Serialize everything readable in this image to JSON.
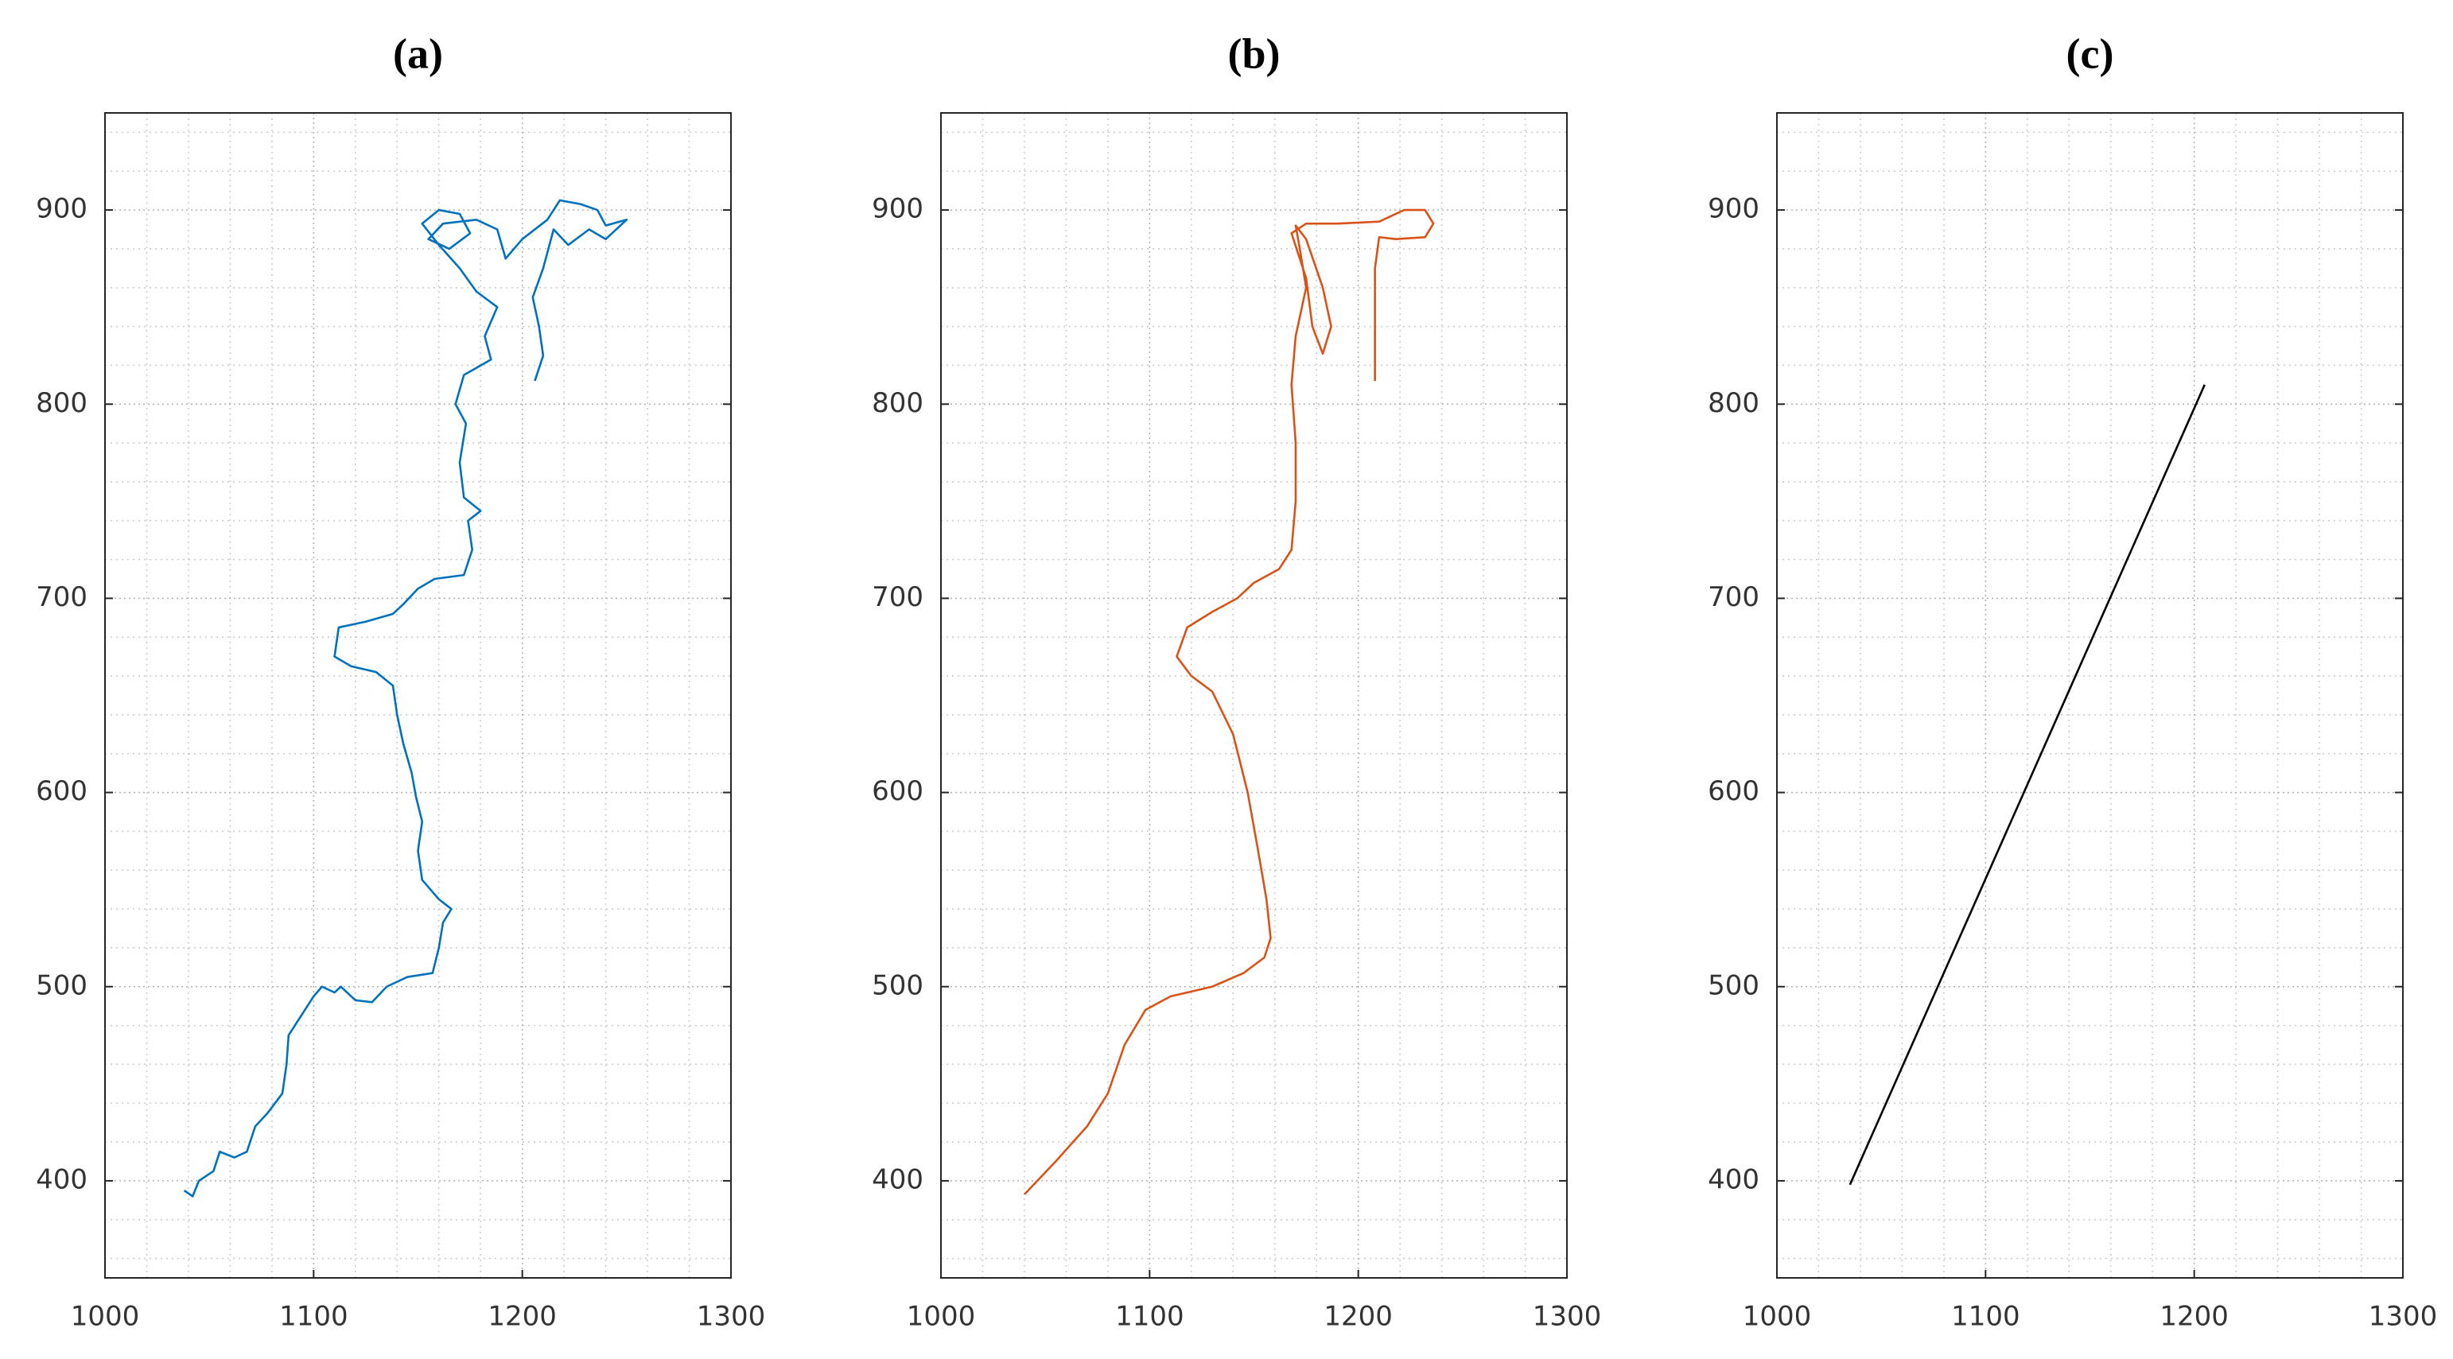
{
  "chart_data": [
    {
      "type": "line",
      "title": "(a)",
      "color": "#0072BD",
      "grid": true,
      "minor_grid": true,
      "xlim": [
        1000,
        1300
      ],
      "ylim": [
        350,
        950
      ],
      "xticks": [
        1000,
        1100,
        1200,
        1300
      ],
      "yticks": [
        400,
        500,
        600,
        700,
        800,
        900
      ],
      "x": [
        1038,
        1042,
        1045,
        1052,
        1055,
        1062,
        1068,
        1072,
        1078,
        1085,
        1087,
        1088,
        1094,
        1100,
        1104,
        1110,
        1113,
        1120,
        1128,
        1135,
        1145,
        1157,
        1160,
        1162,
        1166,
        1160,
        1152,
        1150,
        1152,
        1149,
        1147,
        1143,
        1140,
        1138,
        1130,
        1118,
        1110,
        1112,
        1125,
        1138,
        1143,
        1150,
        1158,
        1172,
        1176,
        1174,
        1180,
        1172,
        1170,
        1173,
        1168,
        1172,
        1185,
        1182,
        1188,
        1178,
        1170,
        1160,
        1152,
        1160,
        1170,
        1175,
        1165,
        1155,
        1162,
        1178,
        1188,
        1192,
        1200,
        1212,
        1218,
        1228,
        1236,
        1240,
        1250,
        1240,
        1232,
        1222,
        1215,
        1210,
        1205,
        1208,
        1210,
        1206
      ],
      "values": [
        395,
        392,
        400,
        405,
        415,
        412,
        415,
        428,
        435,
        445,
        460,
        475,
        485,
        495,
        500,
        497,
        500,
        493,
        492,
        500,
        505,
        507,
        520,
        533,
        540,
        545,
        555,
        570,
        585,
        598,
        610,
        625,
        640,
        655,
        662,
        665,
        670,
        685,
        688,
        692,
        697,
        705,
        710,
        712,
        725,
        740,
        745,
        752,
        770,
        790,
        800,
        815,
        823,
        835,
        850,
        858,
        870,
        882,
        893,
        900,
        898,
        888,
        880,
        885,
        893,
        895,
        890,
        875,
        885,
        895,
        905,
        903,
        900,
        892,
        895,
        885,
        890,
        882,
        890,
        870,
        855,
        840,
        825,
        812
      ]
    },
    {
      "type": "line",
      "title": "(b)",
      "color": "#D95319",
      "grid": true,
      "minor_grid": true,
      "xlim": [
        1000,
        1300
      ],
      "ylim": [
        350,
        950
      ],
      "xticks": [
        1000,
        1100,
        1200,
        1300
      ],
      "yticks": [
        400,
        500,
        600,
        700,
        800,
        900
      ],
      "x": [
        1040,
        1055,
        1070,
        1080,
        1088,
        1098,
        1110,
        1130,
        1145,
        1155,
        1158,
        1156,
        1152,
        1147,
        1140,
        1130,
        1120,
        1113,
        1118,
        1130,
        1142,
        1150,
        1162,
        1168,
        1170,
        1170,
        1168,
        1170,
        1175,
        1172,
        1170,
        1175,
        1183,
        1187,
        1183,
        1178,
        1175,
        1168,
        1175,
        1190,
        1210,
        1222,
        1232,
        1236,
        1232,
        1218,
        1210,
        1208,
        1208,
        1208
      ],
      "values": [
        393,
        410,
        428,
        445,
        470,
        488,
        495,
        500,
        507,
        515,
        525,
        545,
        570,
        600,
        630,
        652,
        660,
        670,
        685,
        693,
        700,
        708,
        715,
        725,
        750,
        780,
        810,
        835,
        860,
        880,
        892,
        885,
        860,
        840,
        826,
        840,
        865,
        888,
        893,
        893,
        894,
        900,
        900,
        893,
        886,
        885,
        886,
        870,
        840,
        812
      ]
    },
    {
      "type": "line",
      "title": "(c)",
      "color": "#000000",
      "grid": true,
      "minor_grid": true,
      "xlim": [
        1000,
        1300
      ],
      "ylim": [
        350,
        950
      ],
      "xticks": [
        1000,
        1100,
        1200,
        1300
      ],
      "yticks": [
        400,
        500,
        600,
        700,
        800,
        900
      ],
      "x": [
        1035,
        1205
      ],
      "values": [
        398,
        810
      ]
    }
  ]
}
